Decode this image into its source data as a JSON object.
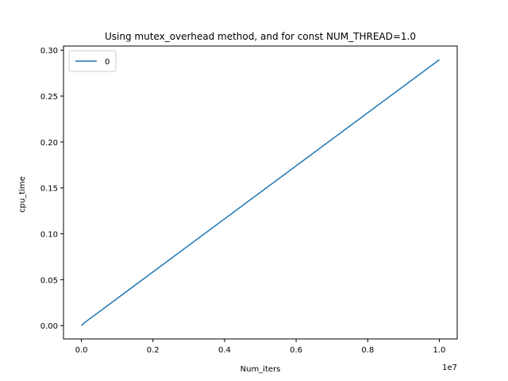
{
  "chart_data": {
    "type": "line",
    "title": "Using mutex_overhead method, and for const NUM_THREAD=1.0",
    "xlabel": "Num_iters",
    "ylabel": "cpu_time",
    "x_offset_label": "1e7",
    "x_scale": 10000000,
    "xlim": [
      -500000,
      10500000
    ],
    "ylim": [
      -0.0145,
      0.3045
    ],
    "xticks": [
      0,
      2000000,
      4000000,
      6000000,
      8000000,
      10000000
    ],
    "xtick_labels": [
      "0.0",
      "0.2",
      "0.4",
      "0.6",
      "0.8",
      "1.0"
    ],
    "yticks": [
      0.0,
      0.05,
      0.1,
      0.15,
      0.2,
      0.25,
      0.3
    ],
    "ytick_labels": [
      "0.00",
      "0.05",
      "0.10",
      "0.15",
      "0.20",
      "0.25",
      "0.30"
    ],
    "grid": false,
    "legend_position": "top-left",
    "series": [
      {
        "name": "0",
        "color": "#1f77b4",
        "x": [
          0,
          100000,
          1000000,
          10000000
        ],
        "y": [
          0.0,
          0.0036,
          0.0296,
          0.2896
        ]
      }
    ]
  }
}
